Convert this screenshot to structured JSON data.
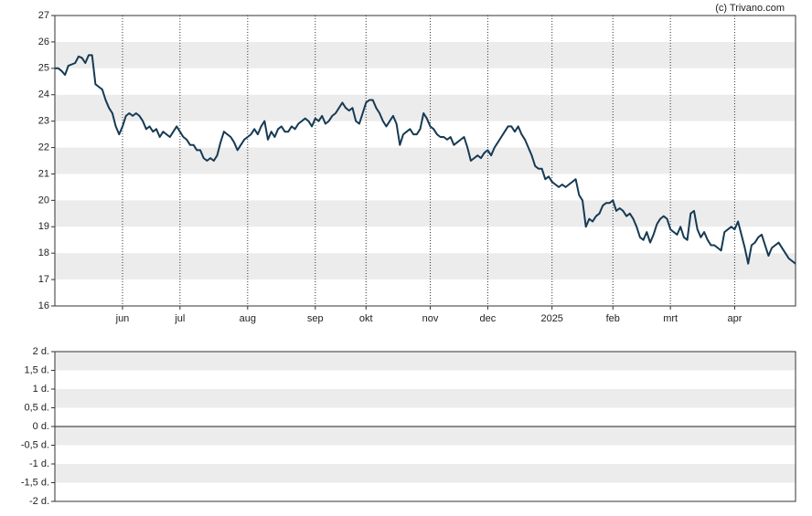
{
  "watermark": "(c) Trivano.com",
  "chart_data": [
    {
      "type": "line",
      "color": "#163a54",
      "ylim": [
        16,
        27
      ],
      "yticks": [
        16,
        17,
        18,
        19,
        20,
        21,
        22,
        23,
        24,
        25,
        26,
        27
      ],
      "xlim": [
        0,
        219
      ],
      "xticks": [
        {
          "value": 20,
          "label": "jun"
        },
        {
          "value": 37,
          "label": "jul"
        },
        {
          "value": 57,
          "label": "aug"
        },
        {
          "value": 77,
          "label": "sep"
        },
        {
          "value": 92,
          "label": "okt"
        },
        {
          "value": 111,
          "label": "nov"
        },
        {
          "value": 128,
          "label": "dec"
        },
        {
          "value": 147,
          "label": "2025"
        },
        {
          "value": 165,
          "label": "feb"
        },
        {
          "value": 182,
          "label": "mrt"
        },
        {
          "value": 201,
          "label": "apr"
        }
      ],
      "grid": true,
      "values": [
        25.0,
        25.0,
        24.9,
        24.75,
        25.1,
        25.15,
        25.2,
        25.45,
        25.4,
        25.2,
        25.5,
        25.5,
        24.4,
        24.3,
        24.2,
        23.8,
        23.5,
        23.3,
        22.8,
        22.5,
        22.8,
        23.2,
        23.3,
        23.2,
        23.3,
        23.2,
        23.0,
        22.7,
        22.8,
        22.6,
        22.7,
        22.4,
        22.6,
        22.5,
        22.4,
        22.6,
        22.8,
        22.6,
        22.4,
        22.3,
        22.1,
        22.1,
        21.9,
        21.9,
        21.6,
        21.5,
        21.6,
        21.5,
        21.7,
        22.2,
        22.6,
        22.5,
        22.4,
        22.2,
        21.9,
        22.1,
        22.3,
        22.4,
        22.5,
        22.7,
        22.5,
        22.8,
        23.0,
        22.3,
        22.6,
        22.4,
        22.7,
        22.8,
        22.6,
        22.6,
        22.8,
        22.7,
        22.9,
        23.0,
        23.1,
        23.0,
        22.8,
        23.1,
        23.0,
        23.2,
        22.9,
        23.0,
        23.2,
        23.3,
        23.5,
        23.7,
        23.5,
        23.4,
        23.5,
        23.0,
        22.9,
        23.3,
        23.7,
        23.8,
        23.8,
        23.5,
        23.3,
        23.0,
        22.8,
        23.0,
        23.2,
        22.9,
        22.1,
        22.5,
        22.6,
        22.7,
        22.5,
        22.5,
        22.7,
        23.3,
        23.1,
        22.8,
        22.7,
        22.5,
        22.4,
        22.4,
        22.3,
        22.4,
        22.1,
        22.2,
        22.3,
        22.4,
        22.0,
        21.5,
        21.6,
        21.7,
        21.6,
        21.8,
        21.9,
        21.7,
        22.0,
        22.2,
        22.4,
        22.6,
        22.8,
        22.8,
        22.6,
        22.8,
        22.5,
        22.3,
        22.0,
        21.7,
        21.3,
        21.2,
        21.2,
        20.8,
        20.9,
        20.7,
        20.6,
        20.5,
        20.6,
        20.5,
        20.6,
        20.7,
        20.8,
        20.2,
        20.0,
        19.0,
        19.3,
        19.2,
        19.4,
        19.5,
        19.8,
        19.9,
        19.9,
        20.0,
        19.6,
        19.7,
        19.6,
        19.4,
        19.5,
        19.3,
        19.0,
        18.6,
        18.5,
        18.8,
        18.4,
        18.7,
        19.1,
        19.3,
        19.4,
        19.3,
        18.9,
        18.8,
        18.7,
        19.0,
        18.6,
        18.5,
        19.5,
        19.6,
        18.9,
        18.6,
        18.8,
        18.5,
        18.3,
        18.3,
        18.2,
        18.1,
        18.8,
        18.9,
        19.0,
        18.9,
        19.2,
        18.7,
        18.2,
        17.6,
        18.3,
        18.4,
        18.6,
        18.7,
        18.3,
        17.9,
        18.2,
        18.3,
        18.4,
        18.2,
        18.0,
        17.8,
        17.7,
        17.6
      ]
    },
    {
      "type": "line",
      "ylim": [
        -2,
        2
      ],
      "yticks": [
        {
          "value": -2,
          "label": "-2 d."
        },
        {
          "value": -1.5,
          "label": "-1,5 d."
        },
        {
          "value": -1,
          "label": "-1 d."
        },
        {
          "value": -0.5,
          "label": "-0,5 d."
        },
        {
          "value": 0,
          "label": "0 d."
        },
        {
          "value": 0.5,
          "label": "0,5 d."
        },
        {
          "value": 1,
          "label": "1 d."
        },
        {
          "value": 1.5,
          "label": "1,5 d."
        },
        {
          "value": 2,
          "label": "2 d."
        }
      ],
      "grid": true
    }
  ]
}
